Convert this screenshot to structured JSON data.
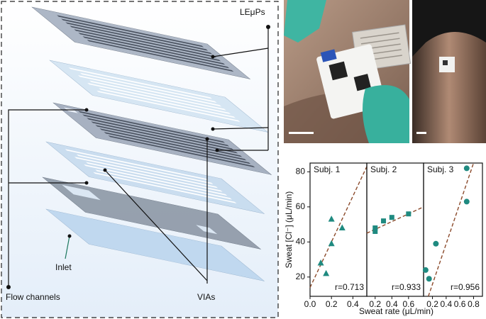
{
  "diagram": {
    "labels": {
      "leups": "LEμPs",
      "flow_channels": "Flow channels",
      "inlet": "Inlet",
      "vias": "VIAs"
    }
  },
  "chart_data": [
    {
      "type": "scatter",
      "title": "Subj. 1",
      "marker": "triangle",
      "color": "#1f8a80",
      "x": [
        0.1,
        0.15,
        0.2,
        0.2,
        0.3
      ],
      "values": [
        28,
        22,
        39,
        53,
        48
      ],
      "fit": {
        "x": [
          0,
          0.53
        ],
        "values": [
          14,
          83
        ],
        "color": "#8b4a2b"
      },
      "annotation": "r=0.713",
      "xlim": [
        0,
        0.53
      ],
      "xticks": [
        {
          "value": 0,
          "label": "0.0"
        },
        0.2,
        0.4
      ],
      "ylim": [
        9,
        85
      ],
      "yticks": [
        20,
        40,
        60,
        80
      ],
      "xlabel": "Sweat rate (μL/min)",
      "ylabel": "Sweat [Cl⁻] (μL/min)"
    },
    {
      "type": "scatter",
      "title": "Subj. 2",
      "marker": "square",
      "color": "#1f8a80",
      "x": [
        0.2,
        0.2,
        0.3,
        0.4,
        0.6
      ],
      "values": [
        46,
        48,
        52,
        54,
        56
      ],
      "fit": {
        "x": [
          0.1,
          0.78
        ],
        "values": [
          45,
          60
        ],
        "color": "#8b4a2b"
      },
      "annotation": "r=0.933",
      "xlim": [
        0.1,
        0.78
      ],
      "xticks": [
        0.2,
        0.4,
        0.6
      ],
      "ylim": [
        9,
        85
      ]
    },
    {
      "type": "scatter",
      "title": "Subj. 3",
      "marker": "circle",
      "color": "#1f8a80",
      "x": [
        0.1,
        0.15,
        0.25,
        0.7,
        0.7
      ],
      "values": [
        24,
        19,
        39,
        82,
        63
      ],
      "fit": {
        "x": [
          0.14,
          0.8
        ],
        "values": [
          9,
          85
        ],
        "color": "#8b4a2b"
      },
      "annotation": "r=0.956",
      "xlim": [
        0.07,
        0.93
      ],
      "xticks": [
        0.2,
        0.4,
        0.6,
        0.8
      ],
      "ylim": [
        9,
        85
      ]
    }
  ]
}
